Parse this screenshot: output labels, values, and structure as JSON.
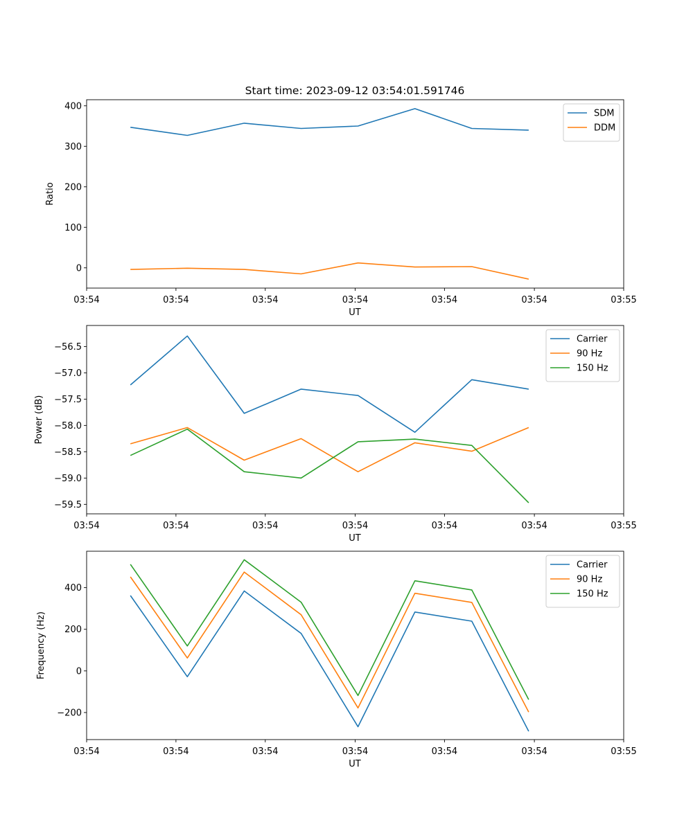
{
  "figure_title": "Start time: 2023-09-12 03:54:01.591746",
  "chart_data": [
    {
      "type": "line",
      "ylabel": "Ratio",
      "xlabel": "UT",
      "ylim": [
        -50,
        415
      ],
      "yticks": [
        0,
        100,
        200,
        300,
        400
      ],
      "ytick_labels": [
        "0",
        "100",
        "200",
        "300",
        "400"
      ],
      "x": [
        1,
        2,
        3,
        4,
        5,
        6,
        7,
        8
      ],
      "xlim": [
        0.23,
        9.67
      ],
      "xticks": [
        0.23,
        1.8,
        3.37,
        4.95,
        6.52,
        8.1,
        9.67
      ],
      "xtick_labels": [
        "03:54",
        "03:54",
        "03:54",
        "03:54",
        "03:54",
        "03:54",
        "03:55"
      ],
      "legend_position": "upper right",
      "series": [
        {
          "name": "SDM",
          "color": "#1f77b4",
          "values": [
            347,
            327,
            357,
            344,
            350,
            393,
            344,
            340
          ]
        },
        {
          "name": "DDM",
          "color": "#ff7f0e",
          "values": [
            -4,
            -1,
            -4,
            -15,
            12,
            2,
            3,
            -28
          ]
        }
      ]
    },
    {
      "type": "line",
      "ylabel": "Power (dB)",
      "xlabel": "UT",
      "ylim": [
        -59.68,
        -56.1
      ],
      "yticks": [
        -59.5,
        -59.0,
        -58.5,
        -58.0,
        -57.5,
        -57.0,
        -56.5
      ],
      "ytick_labels": [
        "−59.5",
        "−59.0",
        "−58.5",
        "−58.0",
        "−57.5",
        "−57.0",
        "−56.5"
      ],
      "x": [
        1,
        2,
        3,
        4,
        5,
        6,
        7,
        8
      ],
      "xlim": [
        0.23,
        9.67
      ],
      "xticks": [
        0.23,
        1.8,
        3.37,
        4.95,
        6.52,
        8.1,
        9.67
      ],
      "xtick_labels": [
        "03:54",
        "03:54",
        "03:54",
        "03:54",
        "03:54",
        "03:54",
        "03:55"
      ],
      "legend_position": "upper right",
      "series": [
        {
          "name": "Carrier",
          "color": "#1f77b4",
          "values": [
            -57.23,
            -56.3,
            -57.77,
            -57.31,
            -57.43,
            -58.13,
            -57.13,
            -57.31
          ]
        },
        {
          "name": "90 Hz",
          "color": "#ff7f0e",
          "values": [
            -58.35,
            -58.04,
            -58.66,
            -58.25,
            -58.88,
            -58.33,
            -58.49,
            -58.04
          ]
        },
        {
          "name": "150 Hz",
          "color": "#2ca02c",
          "values": [
            -58.57,
            -58.07,
            -58.88,
            -59.0,
            -58.31,
            -58.26,
            -58.38,
            -59.47
          ]
        }
      ]
    },
    {
      "type": "line",
      "ylabel": "Frequency (Hz)",
      "xlabel": "UT",
      "ylim": [
        -330,
        575
      ],
      "yticks": [
        -200,
        0,
        200,
        400
      ],
      "ytick_labels": [
        "−200",
        "0",
        "200",
        "400"
      ],
      "x": [
        1,
        2,
        3,
        4,
        5,
        6,
        7,
        8
      ],
      "xlim": [
        0.23,
        9.67
      ],
      "xticks": [
        0.23,
        1.8,
        3.37,
        4.95,
        6.52,
        8.1,
        9.67
      ],
      "xtick_labels": [
        "03:54",
        "03:54",
        "03:54",
        "03:54",
        "03:54",
        "03:54",
        "03:55"
      ],
      "legend_position": "upper right",
      "series": [
        {
          "name": "Carrier",
          "color": "#1f77b4",
          "values": [
            362,
            -28,
            384,
            180,
            -268,
            283,
            239,
            -290
          ]
        },
        {
          "name": "90 Hz",
          "color": "#ff7f0e",
          "values": [
            452,
            62,
            475,
            270,
            -178,
            373,
            329,
            -198
          ]
        },
        {
          "name": "150 Hz",
          "color": "#2ca02c",
          "values": [
            512,
            120,
            534,
            330,
            -118,
            433,
            389,
            -138
          ]
        }
      ]
    }
  ]
}
